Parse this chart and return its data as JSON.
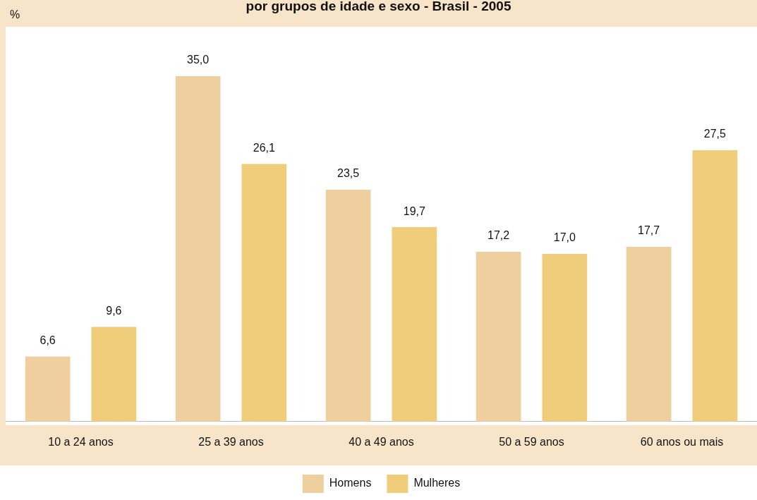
{
  "chart_data": {
    "type": "bar",
    "title": "por grupos de idade e sexo - Brasil - 2005",
    "ylabel": "%",
    "categories": [
      "10 a 24 anos",
      "25 a 39 anos",
      "40 a 49 anos",
      "50 a 59 anos",
      "60 anos ou mais"
    ],
    "series": [
      {
        "name": "Homens",
        "color": "#f0cf9f",
        "values": [
          6.6,
          35.0,
          23.5,
          17.2,
          17.7
        ],
        "value_labels": [
          "6,6",
          "35,0",
          "23,5",
          "17,2",
          "17,7"
        ]
      },
      {
        "name": "Mulheres",
        "color": "#f0cd7a",
        "values": [
          9.6,
          26.1,
          19.7,
          17.0,
          27.5
        ],
        "value_labels": [
          "9,6",
          "26,1",
          "19,7",
          "17,0",
          "27,5"
        ]
      }
    ],
    "legend": "bottom",
    "grid": false
  }
}
